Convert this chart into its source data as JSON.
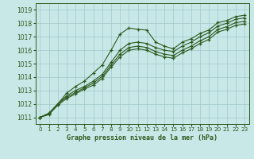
{
  "xlabel": "Graphe pression niveau de la mer (hPa)",
  "xlim": [
    -0.5,
    23.5
  ],
  "ylim": [
    1010.5,
    1019.5
  ],
  "yticks": [
    1011,
    1012,
    1013,
    1014,
    1015,
    1016,
    1017,
    1018,
    1019
  ],
  "xticks": [
    0,
    1,
    2,
    3,
    4,
    5,
    6,
    7,
    8,
    9,
    10,
    11,
    12,
    13,
    14,
    15,
    16,
    17,
    18,
    19,
    20,
    21,
    22,
    23
  ],
  "bg_color": "#c8e8e8",
  "grid_color": "#a0c8c8",
  "line_color": "#2d5a1e",
  "series1_x": [
    0,
    1,
    2,
    3,
    4,
    5,
    6,
    7,
    8,
    9,
    10,
    11,
    12,
    13,
    14,
    15,
    16,
    17,
    18,
    19,
    20,
    21,
    22,
    23
  ],
  "series1_y": [
    1011.0,
    1011.3,
    1012.0,
    1012.8,
    1013.3,
    1013.7,
    1014.3,
    1014.9,
    1016.0,
    1017.2,
    1017.65,
    1017.55,
    1017.5,
    1016.6,
    1016.3,
    1016.1,
    1016.6,
    1016.85,
    1017.25,
    1017.5,
    1018.05,
    1018.2,
    1018.5,
    1018.6
  ],
  "series2_x": [
    0,
    1,
    2,
    3,
    4,
    5,
    6,
    7,
    8,
    9,
    10,
    11,
    12,
    13,
    14,
    15,
    16,
    17,
    18,
    19,
    20,
    21,
    22,
    23
  ],
  "series2_y": [
    1011.0,
    1011.3,
    1012.0,
    1012.6,
    1013.0,
    1013.3,
    1013.7,
    1014.2,
    1015.1,
    1016.0,
    1016.5,
    1016.6,
    1016.5,
    1016.2,
    1016.0,
    1015.9,
    1016.3,
    1016.6,
    1017.0,
    1017.3,
    1017.8,
    1018.0,
    1018.3,
    1018.4
  ],
  "series3_x": [
    0,
    1,
    2,
    3,
    4,
    5,
    6,
    7,
    8,
    9,
    10,
    11,
    12,
    13,
    14,
    15,
    16,
    17,
    18,
    19,
    20,
    21,
    22,
    23
  ],
  "series3_y": [
    1011.0,
    1011.25,
    1012.0,
    1012.5,
    1012.85,
    1013.2,
    1013.55,
    1014.05,
    1014.9,
    1015.7,
    1016.2,
    1016.3,
    1016.2,
    1015.9,
    1015.7,
    1015.6,
    1016.0,
    1016.3,
    1016.7,
    1017.0,
    1017.55,
    1017.75,
    1018.05,
    1018.15
  ],
  "series4_x": [
    0,
    1,
    2,
    3,
    4,
    5,
    6,
    7,
    8,
    9,
    10,
    11,
    12,
    13,
    14,
    15,
    16,
    17,
    18,
    19,
    20,
    21,
    22,
    23
  ],
  "series4_y": [
    1011.0,
    1011.2,
    1011.9,
    1012.4,
    1012.75,
    1013.1,
    1013.4,
    1013.9,
    1014.75,
    1015.5,
    1016.0,
    1016.1,
    1016.0,
    1015.7,
    1015.5,
    1015.4,
    1015.8,
    1016.1,
    1016.5,
    1016.8,
    1017.35,
    1017.55,
    1017.85,
    1017.95
  ]
}
